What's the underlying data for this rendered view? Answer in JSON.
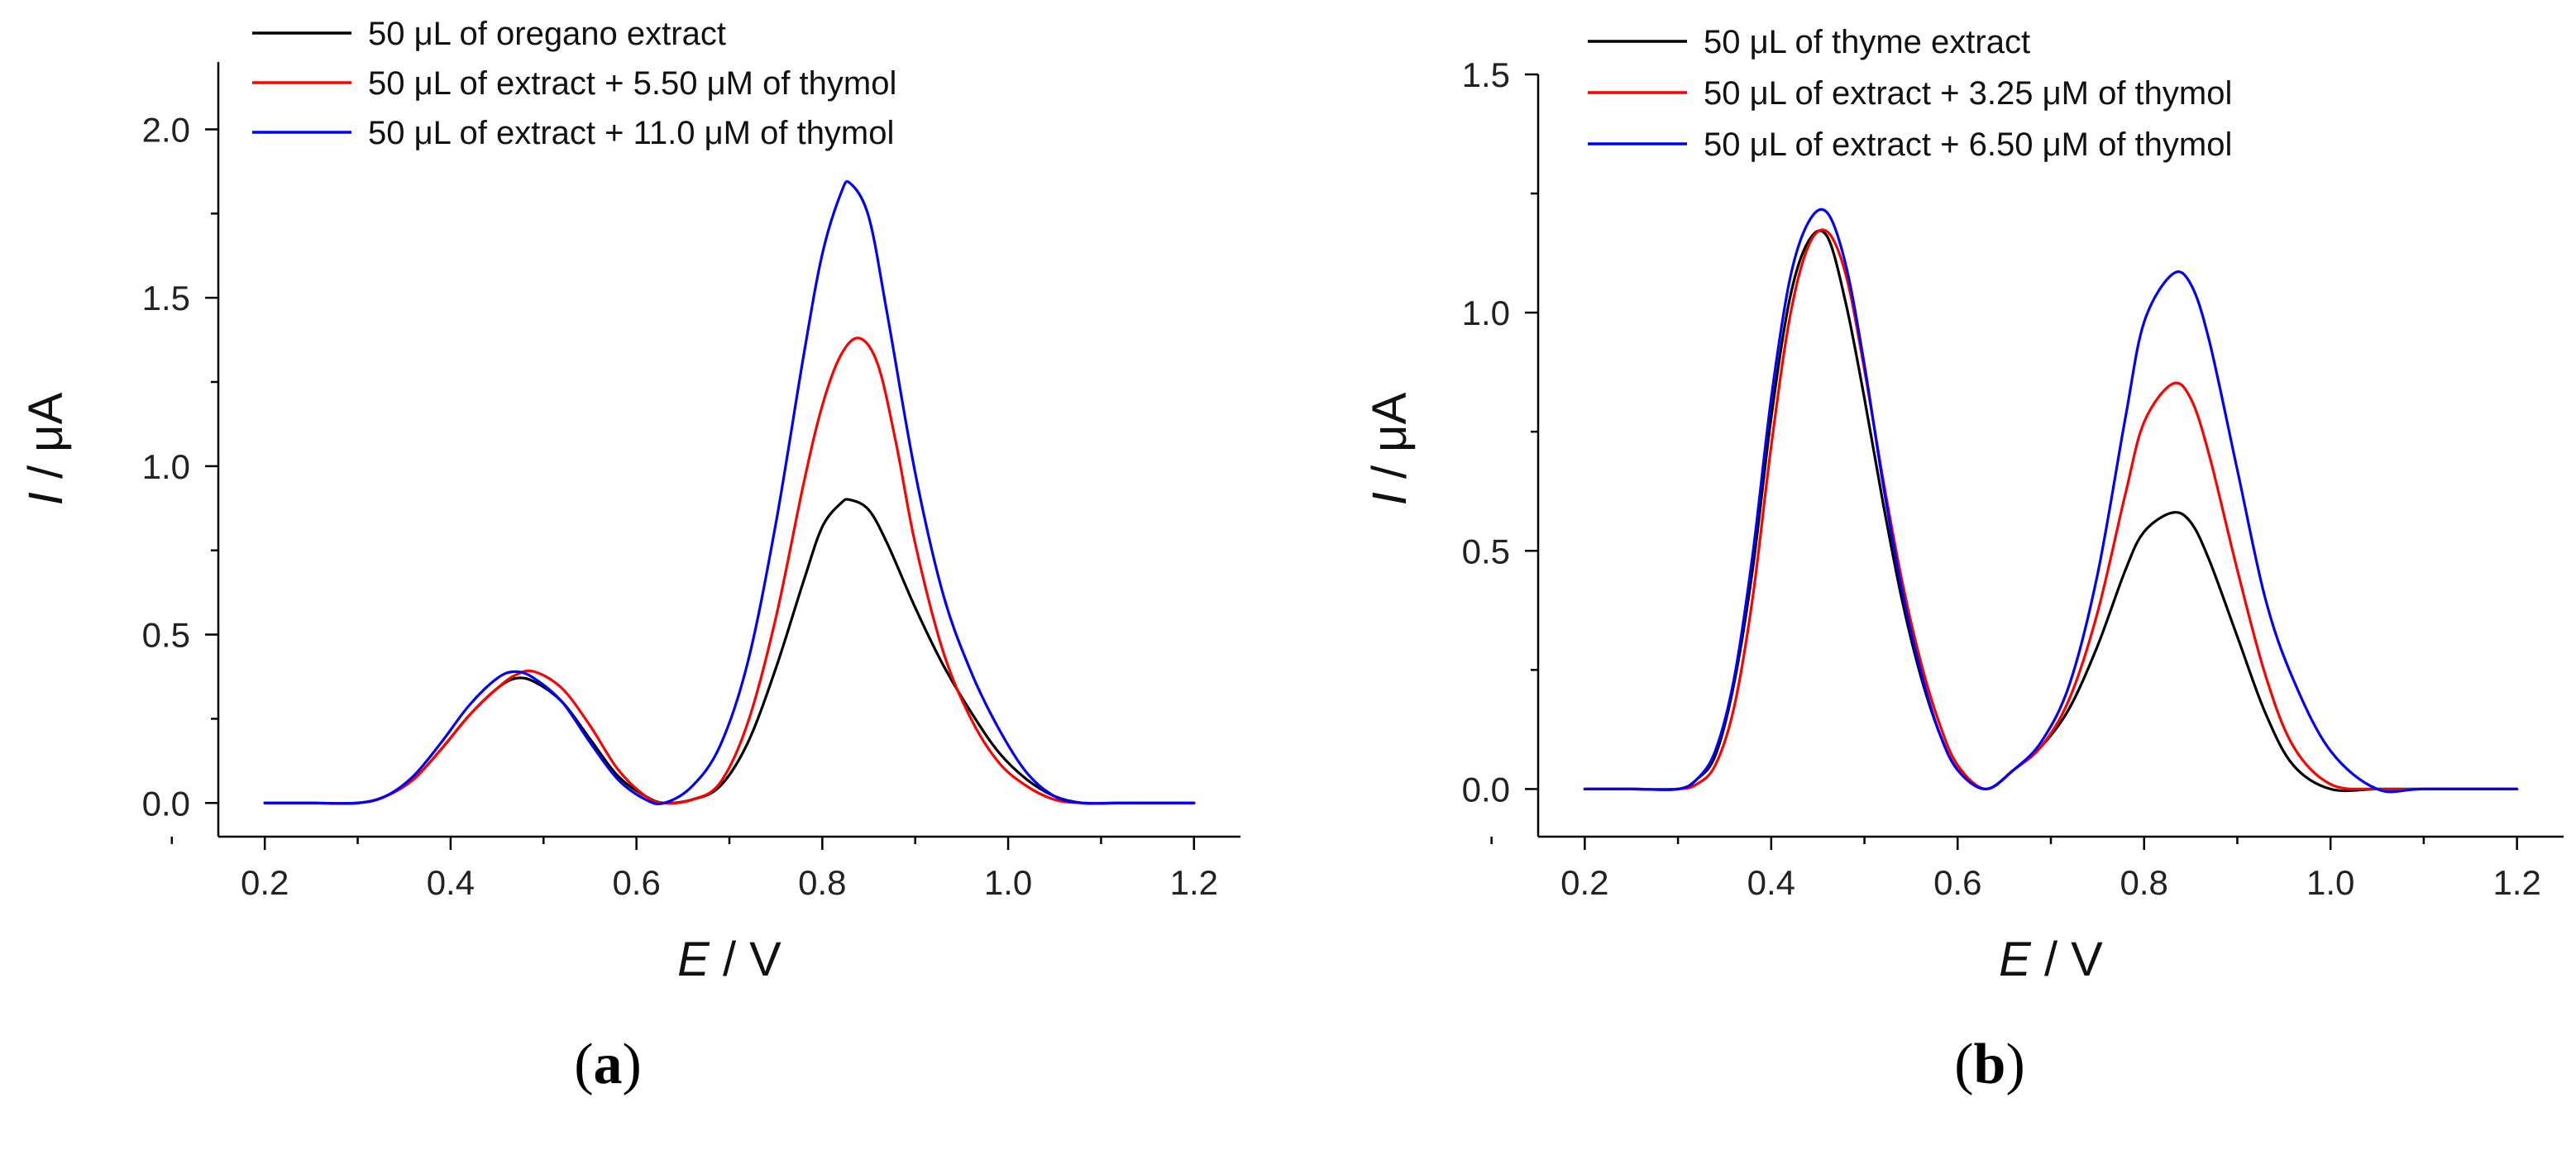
{
  "chart_data": [
    {
      "type": "line",
      "panel_label_open": "(",
      "panel_label_letter": "a",
      "panel_label_close": ")",
      "xlabel_var": "E",
      "xlabel_unit": " / V",
      "ylabel_var": "I",
      "ylabel_unit": " / μA",
      "xlim": [
        0.15,
        1.25
      ],
      "ylim": [
        -0.1,
        2.2
      ],
      "xticks": [
        0.2,
        0.4,
        0.6,
        0.8,
        1.0,
        1.2
      ],
      "xtick_labels": [
        "0.2",
        "0.4",
        "0.6",
        "0.8",
        "1.0",
        "1.2"
      ],
      "yticks": [
        0.0,
        0.5,
        1.0,
        1.5,
        2.0
      ],
      "ytick_labels": [
        "0.0",
        "0.5",
        "1.0",
        "1.5",
        "2.0"
      ],
      "legend_position": "top-left",
      "series": [
        {
          "name": "50 μL of oregano extract",
          "color": "#000000",
          "x": [
            0.2,
            0.25,
            0.3,
            0.33,
            0.36,
            0.39,
            0.42,
            0.45,
            0.47,
            0.49,
            0.52,
            0.55,
            0.58,
            0.61,
            0.63,
            0.66,
            0.69,
            0.72,
            0.75,
            0.78,
            0.8,
            0.82,
            0.83,
            0.85,
            0.87,
            0.9,
            0.93,
            0.96,
            0.99,
            1.02,
            1.05,
            1.08,
            1.12,
            1.16,
            1.2
          ],
          "y": [
            0.0,
            0.0,
            0.0,
            0.02,
            0.07,
            0.16,
            0.26,
            0.34,
            0.37,
            0.36,
            0.3,
            0.19,
            0.08,
            0.02,
            0.0,
            0.01,
            0.05,
            0.18,
            0.4,
            0.66,
            0.82,
            0.89,
            0.9,
            0.87,
            0.77,
            0.58,
            0.41,
            0.27,
            0.15,
            0.07,
            0.02,
            0.0,
            0.0,
            0.0,
            0.0
          ]
        },
        {
          "name": "50 μL of extract + 5.50 μM of thymol",
          "color": "#ff0000",
          "x": [
            0.2,
            0.25,
            0.3,
            0.33,
            0.36,
            0.39,
            0.42,
            0.45,
            0.47,
            0.49,
            0.52,
            0.55,
            0.58,
            0.61,
            0.63,
            0.66,
            0.69,
            0.72,
            0.75,
            0.78,
            0.8,
            0.82,
            0.84,
            0.86,
            0.88,
            0.9,
            0.93,
            0.96,
            0.99,
            1.02,
            1.05,
            1.08,
            1.12,
            1.16,
            1.2
          ],
          "y": [
            0.0,
            0.0,
            0.0,
            0.02,
            0.07,
            0.16,
            0.26,
            0.34,
            0.38,
            0.39,
            0.34,
            0.23,
            0.1,
            0.02,
            0.0,
            0.01,
            0.06,
            0.24,
            0.55,
            0.95,
            1.18,
            1.33,
            1.38,
            1.3,
            1.06,
            0.77,
            0.45,
            0.25,
            0.12,
            0.05,
            0.01,
            0.0,
            0.0,
            0.0,
            0.0
          ]
        },
        {
          "name": "50 μL of extract + 11.0 μM of thymol",
          "color": "#0000ff",
          "x": [
            0.2,
            0.25,
            0.3,
            0.33,
            0.36,
            0.39,
            0.42,
            0.45,
            0.47,
            0.49,
            0.52,
            0.55,
            0.58,
            0.61,
            0.63,
            0.66,
            0.69,
            0.72,
            0.75,
            0.78,
            0.8,
            0.82,
            0.83,
            0.85,
            0.87,
            0.9,
            0.93,
            0.96,
            0.99,
            1.02,
            1.05,
            1.08,
            1.12,
            1.16,
            1.2
          ],
          "y": [
            0.0,
            0.0,
            0.0,
            0.02,
            0.08,
            0.18,
            0.29,
            0.37,
            0.39,
            0.37,
            0.3,
            0.18,
            0.07,
            0.01,
            0.0,
            0.05,
            0.17,
            0.42,
            0.83,
            1.33,
            1.63,
            1.81,
            1.84,
            1.74,
            1.45,
            0.98,
            0.62,
            0.39,
            0.22,
            0.09,
            0.02,
            0.0,
            0.0,
            0.0,
            0.0
          ]
        }
      ]
    },
    {
      "type": "line",
      "panel_label_open": "(",
      "panel_label_letter": "b",
      "panel_label_close": ")",
      "xlabel_var": "E",
      "xlabel_unit": " / V",
      "ylabel_var": "I",
      "ylabel_unit": " / μA",
      "xlim": [
        0.15,
        1.25
      ],
      "ylim": [
        -0.1,
        1.5
      ],
      "xticks": [
        0.2,
        0.4,
        0.6,
        0.8,
        1.0,
        1.2
      ],
      "xtick_labels": [
        "0.2",
        "0.4",
        "0.6",
        "0.8",
        "1.0",
        "1.2"
      ],
      "yticks": [
        0.0,
        0.5,
        1.0,
        1.5
      ],
      "ytick_labels": [
        "0.0",
        "0.5",
        "1.0",
        "1.5"
      ],
      "legend_position": "top-left",
      "series": [
        {
          "name": "50 μL of thyme extract",
          "color": "#000000",
          "x": [
            0.2,
            0.25,
            0.3,
            0.32,
            0.34,
            0.36,
            0.38,
            0.4,
            0.42,
            0.44,
            0.46,
            0.48,
            0.5,
            0.52,
            0.54,
            0.56,
            0.58,
            0.6,
            0.63,
            0.66,
            0.69,
            0.72,
            0.75,
            0.78,
            0.8,
            0.83,
            0.85,
            0.87,
            0.9,
            0.93,
            0.96,
            1.0,
            1.05,
            1.1,
            1.2
          ],
          "y": [
            0.0,
            0.0,
            0.0,
            0.02,
            0.07,
            0.22,
            0.46,
            0.78,
            1.03,
            1.15,
            1.16,
            1.02,
            0.82,
            0.6,
            0.4,
            0.24,
            0.12,
            0.04,
            0.0,
            0.04,
            0.09,
            0.17,
            0.3,
            0.46,
            0.54,
            0.58,
            0.56,
            0.48,
            0.32,
            0.16,
            0.05,
            0.0,
            0.0,
            0.0,
            0.0
          ]
        },
        {
          "name": "50 μL of extract + 3.25 μM of thymol",
          "color": "#ff0000",
          "x": [
            0.2,
            0.25,
            0.3,
            0.32,
            0.34,
            0.36,
            0.38,
            0.4,
            0.42,
            0.44,
            0.46,
            0.48,
            0.5,
            0.52,
            0.54,
            0.56,
            0.58,
            0.6,
            0.63,
            0.66,
            0.69,
            0.72,
            0.75,
            0.78,
            0.8,
            0.83,
            0.85,
            0.87,
            0.9,
            0.93,
            0.96,
            1.0,
            1.05,
            1.1,
            1.2
          ],
          "y": [
            0.0,
            0.0,
            0.0,
            0.01,
            0.05,
            0.17,
            0.4,
            0.72,
            0.99,
            1.14,
            1.17,
            1.08,
            0.88,
            0.65,
            0.44,
            0.27,
            0.14,
            0.05,
            0.0,
            0.04,
            0.09,
            0.19,
            0.37,
            0.62,
            0.77,
            0.85,
            0.82,
            0.7,
            0.46,
            0.24,
            0.09,
            0.01,
            0.0,
            0.0,
            0.0
          ]
        },
        {
          "name": "50 μL of extract + 6.50 μM of thymol",
          "color": "#0000ff",
          "x": [
            0.2,
            0.25,
            0.3,
            0.32,
            0.34,
            0.36,
            0.38,
            0.4,
            0.42,
            0.44,
            0.46,
            0.48,
            0.5,
            0.52,
            0.54,
            0.56,
            0.58,
            0.6,
            0.63,
            0.66,
            0.69,
            0.72,
            0.75,
            0.78,
            0.8,
            0.83,
            0.85,
            0.87,
            0.9,
            0.93,
            0.96,
            1.0,
            1.05,
            1.1,
            1.2
          ],
          "y": [
            0.0,
            0.0,
            0.0,
            0.02,
            0.08,
            0.23,
            0.49,
            0.82,
            1.07,
            1.19,
            1.21,
            1.1,
            0.89,
            0.64,
            0.42,
            0.25,
            0.12,
            0.04,
            0.0,
            0.04,
            0.1,
            0.22,
            0.45,
            0.78,
            0.98,
            1.08,
            1.06,
            0.94,
            0.67,
            0.4,
            0.23,
            0.08,
            0.0,
            0.0,
            0.0
          ]
        }
      ]
    }
  ]
}
